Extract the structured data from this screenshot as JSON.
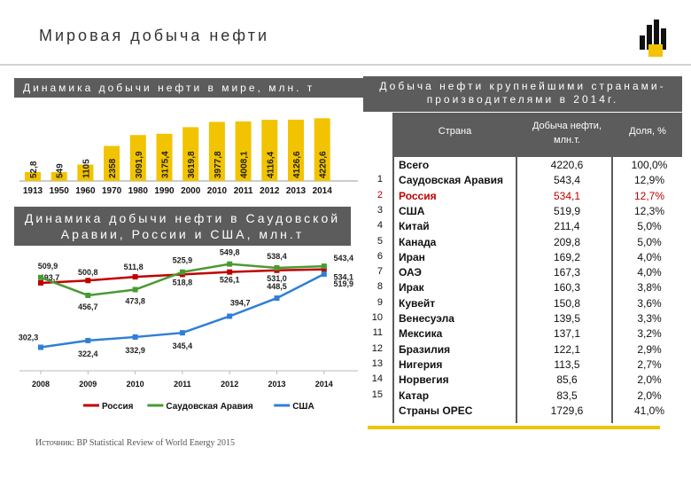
{
  "page": {
    "title": "Мировая добыча нефти"
  },
  "logo": {
    "icon": "rosneft-logo-icon",
    "color": "#f2c300"
  },
  "world_section": {
    "header": "Динамика добычи нефти в мире, млн. т"
  },
  "saudi_section": {
    "header": "Динамика добычи нефти в Саудовской Аравии, России и США, млн.т"
  },
  "producers_section": {
    "header": "Добыча нефти крупнейшими странами-производителями в 2014г."
  },
  "table": {
    "headers": {
      "country": "Страна",
      "production": "Добыча нефти, млн.т.",
      "share": "Доля, %"
    },
    "rows": [
      {
        "num": "",
        "country": "Всего",
        "production": "4220,6",
        "share": "100,0%",
        "highlight": false
      },
      {
        "num": "1",
        "country": "Саудовская Аравия",
        "production": "543,4",
        "share": "12,9%",
        "highlight": false
      },
      {
        "num": "2",
        "country": "Россия",
        "production": "534,1",
        "share": "12,7%",
        "highlight": true
      },
      {
        "num": "3",
        "country": "США",
        "production": "519,9",
        "share": "12,3%",
        "highlight": false
      },
      {
        "num": "4",
        "country": "Китай",
        "production": "211,4",
        "share": "5,0%",
        "highlight": false
      },
      {
        "num": "5",
        "country": "Канада",
        "production": "209,8",
        "share": "5,0%",
        "highlight": false
      },
      {
        "num": "6",
        "country": "Иран",
        "production": "169,2",
        "share": "4,0%",
        "highlight": false
      },
      {
        "num": "7",
        "country": "ОАЭ",
        "production": "167,3",
        "share": "4,0%",
        "highlight": false
      },
      {
        "num": "8",
        "country": "Ирак",
        "production": "160,3",
        "share": "3,8%",
        "highlight": false
      },
      {
        "num": "9",
        "country": "Кувейт",
        "production": "150,8",
        "share": "3,6%",
        "highlight": false
      },
      {
        "num": "10",
        "country": "Венесуэла",
        "production": "139,5",
        "share": "3,3%",
        "highlight": false
      },
      {
        "num": "11",
        "country": "Мексика",
        "production": "137,1",
        "share": "3,2%",
        "highlight": false
      },
      {
        "num": "12",
        "country": "Бразилия",
        "production": "122,1",
        "share": "2,9%",
        "highlight": false
      },
      {
        "num": "13",
        "country": "Нигерия",
        "production": "113,5",
        "share": "2,7%",
        "highlight": false
      },
      {
        "num": "14",
        "country": "Норвегия",
        "production": "85,6",
        "share": "2,0%",
        "highlight": false
      },
      {
        "num": "15",
        "country": "Катар",
        "production": "83,5",
        "share": "2,0%",
        "highlight": false
      },
      {
        "num": "",
        "country": "Страны ОPEC",
        "production": "1729,6",
        "share": "41,0%",
        "highlight": false
      }
    ]
  },
  "source": "Источник: BP Statistical Review of World Energy 2015",
  "chart_data": [
    {
      "type": "bar",
      "title": "Динамика добычи нефти в мире, млн. т",
      "categories": [
        "1913",
        "1950",
        "1960",
        "1970",
        "1980",
        "1990",
        "2000",
        "2010",
        "2011",
        "2012",
        "2013",
        "2014"
      ],
      "values": [
        52.8,
        549,
        1105,
        2358,
        3091.9,
        3175.4,
        3619.8,
        3977.8,
        4008.1,
        4116.4,
        4126.6,
        4220.6
      ],
      "value_labels": [
        "52,8",
        "549",
        "1105",
        "2358",
        "3091,9",
        "3175,4",
        "3619,8",
        "3977,8",
        "4008,1",
        "4116,4",
        "4126,6",
        "4220,6"
      ],
      "color": "#f2c300"
    },
    {
      "type": "line",
      "title": "Динамика добычи нефти в Саудовской Аравии, России и США, млн.т",
      "x": [
        "2008",
        "2009",
        "2010",
        "2011",
        "2012",
        "2013",
        "2014"
      ],
      "series": [
        {
          "name": "Россия",
          "color": "#c00000",
          "values": [
            493.7,
            500.8,
            511.8,
            518.8,
            526.1,
            531.0,
            534.1
          ],
          "labels": [
            "493,7",
            "500,8",
            "511,8",
            "518,8",
            "526,1",
            "531,0",
            "534,1"
          ]
        },
        {
          "name": "Саудовская Аравия",
          "color": "#4a9a32",
          "values": [
            509.9,
            456.7,
            473.8,
            525.9,
            549.8,
            538.4,
            543.4
          ],
          "labels": [
            "509,9",
            "456,7",
            "473,8",
            "525,9",
            "549,8",
            "538,4",
            "543,4"
          ]
        },
        {
          "name": "США",
          "color": "#2f7fd6",
          "values": [
            302.3,
            322.4,
            332.9,
            345.4,
            394.7,
            448.5,
            519.9
          ],
          "labels": [
            "302,3",
            "322,4",
            "332,9",
            "345,4",
            "394,7",
            "448,5",
            "519,9"
          ]
        }
      ],
      "ylim": [
        280,
        570
      ]
    }
  ]
}
